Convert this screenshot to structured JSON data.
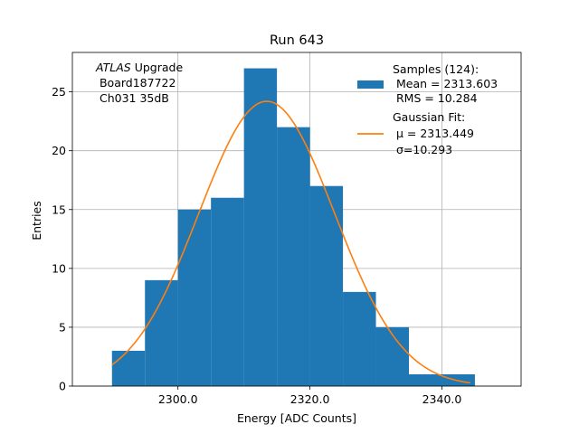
{
  "chart_data": {
    "type": "bar",
    "title": "Run 643",
    "xlabel": "Energy [ADC Counts]",
    "ylabel": "Entries",
    "xlim": [
      2284.0,
      2352.0
    ],
    "ylim": [
      0,
      28.35
    ],
    "x_ticks": [
      {
        "value": 2300,
        "label": "2300.0"
      },
      {
        "value": 2320,
        "label": "2320.0"
      },
      {
        "value": 2340,
        "label": "2340.0"
      }
    ],
    "y_ticks": [
      {
        "value": 0,
        "label": "0"
      },
      {
        "value": 5,
        "label": "5"
      },
      {
        "value": 10,
        "label": "10"
      },
      {
        "value": 15,
        "label": "15"
      },
      {
        "value": 20,
        "label": "20"
      },
      {
        "value": 25,
        "label": "25"
      }
    ],
    "grid": true,
    "legend_position": "top-right",
    "bar_color": "#1f77b4",
    "fit_color": "#ff7f0e",
    "bins": [
      {
        "x0": 2290.0,
        "x1": 2295.0,
        "count": 3
      },
      {
        "x0": 2295.0,
        "x1": 2300.0,
        "count": 9
      },
      {
        "x0": 2300.0,
        "x1": 2305.0,
        "count": 15
      },
      {
        "x0": 2305.0,
        "x1": 2310.0,
        "count": 16
      },
      {
        "x0": 2310.0,
        "x1": 2315.0,
        "count": 27
      },
      {
        "x0": 2315.0,
        "x1": 2320.0,
        "count": 22
      },
      {
        "x0": 2320.0,
        "x1": 2325.0,
        "count": 17
      },
      {
        "x0": 2325.0,
        "x1": 2330.0,
        "count": 8
      },
      {
        "x0": 2330.0,
        "x1": 2335.0,
        "count": 5
      },
      {
        "x0": 2335.0,
        "x1": 2340.0,
        "count": 1
      },
      {
        "x0": 2340.0,
        "x1": 2345.0,
        "count": 1
      }
    ],
    "fit": {
      "type": "gaussian",
      "amplitude": 24.2,
      "mu": 2313.449,
      "sigma": 10.293,
      "x_range": [
        2290.0,
        2344.3
      ]
    },
    "legend": {
      "hist_lines": [
        "Samples (124):",
        " Mean = 2313.603",
        " RMS = 10.284"
      ],
      "fit_lines": [
        "Gaussian Fit:",
        " μ = 2313.449",
        " σ=10.293"
      ]
    },
    "annotation": {
      "atlas_italic": "ATLAS",
      "atlas_rest": " Upgrade",
      "line2": " Board187722",
      "line3": " Ch031 35dB"
    }
  }
}
